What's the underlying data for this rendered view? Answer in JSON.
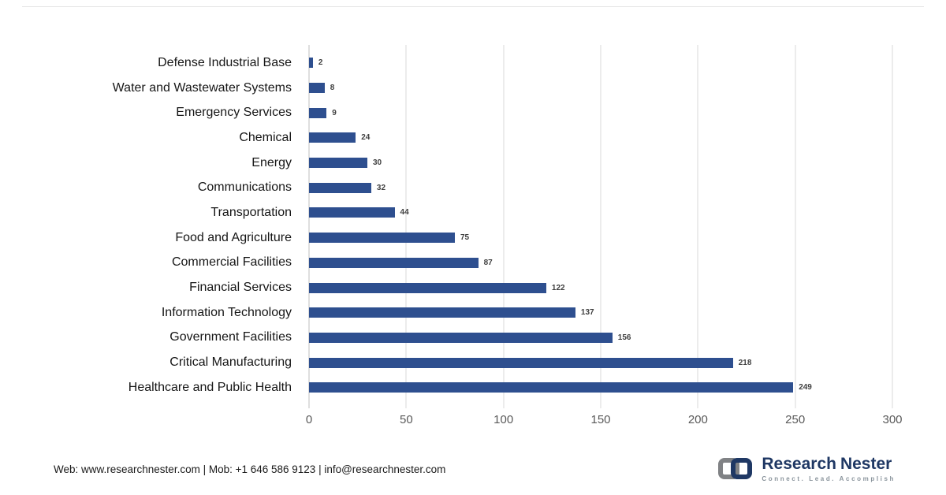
{
  "chart_data": {
    "type": "bar",
    "orientation": "horizontal",
    "title": "",
    "categories": [
      "Defense Industrial Base",
      "Water and Wastewater Systems",
      "Emergency Services",
      "Chemical",
      "Energy",
      "Communications",
      "Transportation",
      "Food and Agriculture",
      "Commercial Facilities",
      "Financial Services",
      "Information Technology",
      "Government Facilities",
      "Critical Manufacturing",
      "Healthcare and Public Health"
    ],
    "values": [
      2,
      8,
      9,
      24,
      30,
      32,
      44,
      75,
      87,
      122,
      137,
      156,
      218,
      249
    ],
    "xlim": [
      0,
      300
    ],
    "x_ticks": [
      0,
      50,
      100,
      150,
      200,
      250,
      300
    ],
    "bar_color": "#2e4f8f",
    "grid": true,
    "legend": "none"
  },
  "footer": {
    "contact": "Web: www.researchnester.com | Mob: +1 646 586 9123 | info@researchnester.com"
  },
  "logo": {
    "name_part1": "Research",
    "name_part2": "Nester",
    "tagline": "Connect. Lead. Accomplish"
  }
}
